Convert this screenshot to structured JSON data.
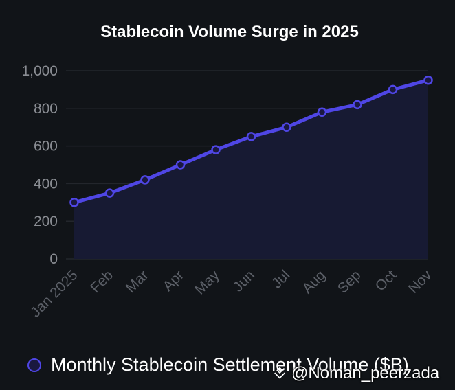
{
  "chart_data": {
    "type": "area",
    "title": "Stablecoin Volume Surge in 2025",
    "categories": [
      "Jan 2025",
      "Feb",
      "Mar",
      "Apr",
      "May",
      "Jun",
      "Jul",
      "Aug",
      "Sep",
      "Oct",
      "Nov"
    ],
    "series": [
      {
        "name": "Monthly Stablecoin Settlement Volume ($B)",
        "values": [
          300,
          350,
          420,
          500,
          580,
          650,
          700,
          780,
          820,
          900,
          950
        ],
        "color": "#4f46e5"
      }
    ],
    "ylim": [
      0,
      1000
    ],
    "yticks": [
      0,
      200,
      400,
      600,
      800,
      1000
    ],
    "ytick_labels": [
      "0",
      "200",
      "400",
      "600",
      "800",
      "1,000"
    ],
    "grid": true,
    "legend_position": "bottom-left"
  },
  "colors": {
    "background": "#111418",
    "line": "#4f46e5",
    "fill": "#171a33",
    "grid": "#23262c"
  },
  "watermark": {
    "text": "@Noman_peerzada",
    "icon": "binance-square-icon"
  }
}
